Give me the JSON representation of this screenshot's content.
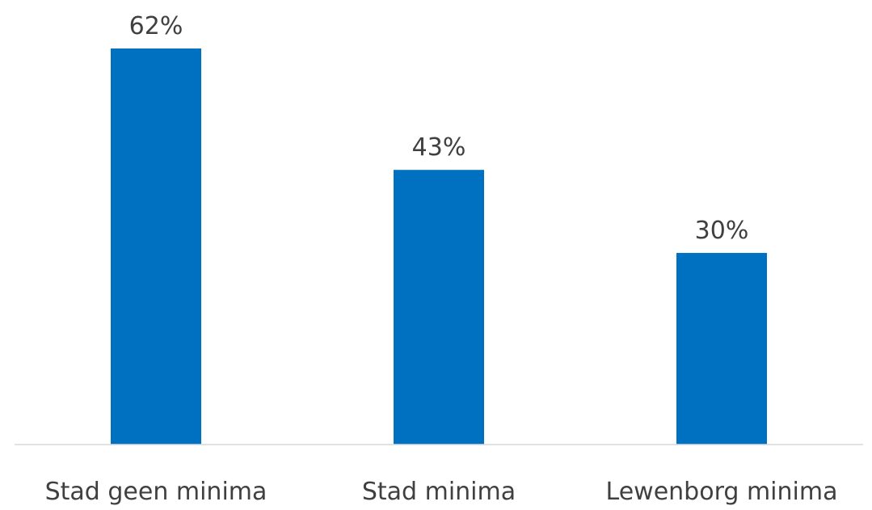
{
  "chart_data": {
    "type": "bar",
    "categories": [
      "Stad geen minima",
      "Stad minima",
      "Lewenborg minima"
    ],
    "values": [
      62,
      43,
      30
    ],
    "value_labels": [
      "62%",
      "43%",
      "30%"
    ],
    "title": "",
    "xlabel": "",
    "ylabel": "",
    "ylim": [
      0,
      62
    ],
    "grid": false,
    "legend": "none",
    "bar_color": "#0070C0",
    "axis_color": "#D9D9D9",
    "text_color": "#404040"
  }
}
